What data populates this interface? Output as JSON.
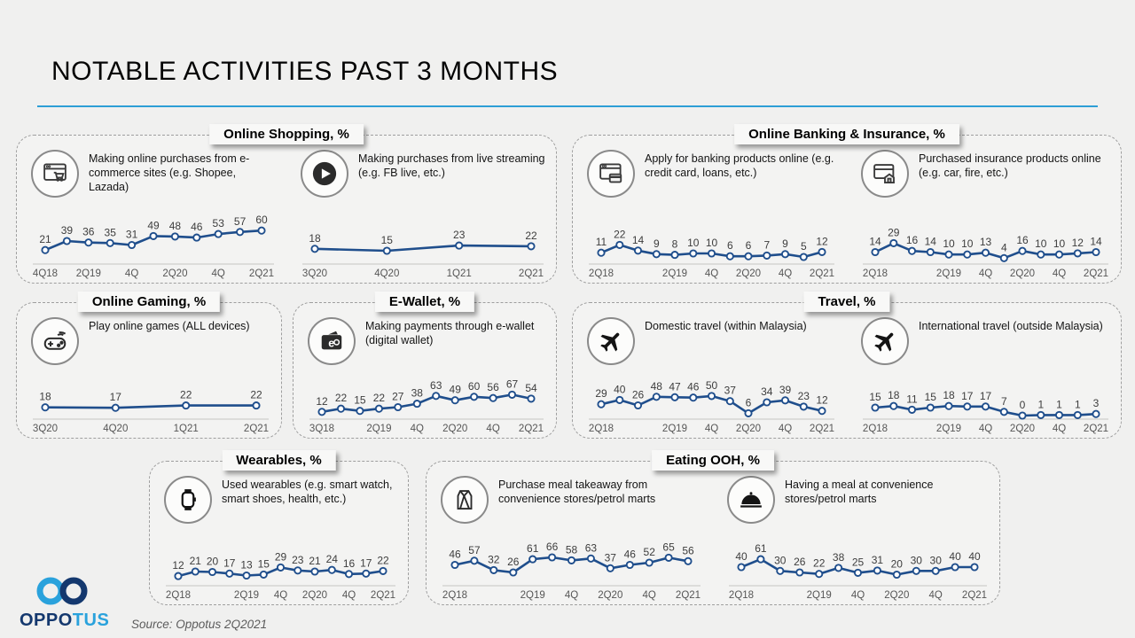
{
  "slide": {
    "title": "NOTABLE ACTIVITIES PAST 3 MONTHS",
    "source": "Source: Oppotus 2Q2021",
    "logo": {
      "brand_prefix": "OPPO",
      "brand_suffix": "TUS"
    }
  },
  "colors": {
    "line": "#1F4E8C",
    "marker_fill": "#FFFFFF",
    "value_label": "#3d3d3d",
    "axis_label": "#565656",
    "axis_line": "#c4c4c2",
    "title_underline": "#2E9FD6",
    "logo_navy": "#14386E",
    "logo_blue": "#2AA2DC"
  },
  "sections": [
    {
      "title": "Online Shopping, %"
    },
    {
      "title": "Online Banking & Insurance, %"
    },
    {
      "title": "Online Gaming, %"
    },
    {
      "title": "E-Wallet, %"
    },
    {
      "title": "Travel, %"
    },
    {
      "title": "Wearables, %"
    },
    {
      "title": "Eating OOH, %"
    }
  ],
  "chart_data": [
    {
      "id": "ecommerce",
      "type": "line",
      "caption": "Making online purchases from e-commerce sites (e.g. Shopee, Lazada)",
      "icon": "browser-cart-icon",
      "categories": [
        "4Q18",
        "1Q19",
        "2Q19",
        "3Q19",
        "4Q19",
        "1Q20",
        "2Q20",
        "3Q20",
        "4Q20",
        "1Q21",
        "2Q21"
      ],
      "values": [
        21,
        39,
        36,
        35,
        31,
        49,
        48,
        46,
        53,
        57,
        60
      ],
      "tick_indices": [
        0,
        2,
        4,
        6,
        8,
        10
      ],
      "tick_labels": [
        "4Q18",
        "2Q19",
        "4Q",
        "2Q20",
        "4Q",
        "2Q21"
      ],
      "ylim": [
        0,
        78
      ]
    },
    {
      "id": "live-streaming",
      "type": "line",
      "caption": "Making purchases from live streaming (e.g. FB live, etc.)",
      "icon": "play-circle-icon",
      "categories": [
        "3Q20",
        "4Q20",
        "1Q21",
        "2Q21"
      ],
      "values": [
        18,
        15,
        23,
        22
      ],
      "tick_indices": [
        0,
        1,
        2,
        3
      ],
      "tick_labels": [
        "3Q20",
        "4Q20",
        "1Q21",
        "2Q21"
      ],
      "ylim": [
        0,
        60
      ]
    },
    {
      "id": "banking",
      "type": "line",
      "caption": "Apply for banking products online (e.g. credit card, loans, etc.)",
      "icon": "banking-card-icon",
      "categories": [
        "2Q18",
        "3Q18",
        "4Q18",
        "1Q19",
        "2Q19",
        "3Q19",
        "4Q19",
        "1Q20",
        "2Q20",
        "3Q20",
        "4Q20",
        "1Q21",
        "2Q21"
      ],
      "values": [
        11,
        22,
        14,
        9,
        8,
        10,
        10,
        6,
        6,
        7,
        9,
        5,
        12
      ],
      "tick_indices": [
        0,
        4,
        6,
        8,
        10,
        12
      ],
      "tick_labels": [
        "2Q18",
        "2Q19",
        "4Q",
        "2Q20",
        "4Q",
        "2Q21"
      ],
      "ylim": [
        0,
        55
      ]
    },
    {
      "id": "insurance",
      "type": "line",
      "caption": "Purchased insurance products online (e.g. car, fire, etc.)",
      "icon": "insurance-home-icon",
      "categories": [
        "2Q18",
        "3Q18",
        "4Q18",
        "1Q19",
        "2Q19",
        "3Q19",
        "4Q19",
        "1Q20",
        "2Q20",
        "3Q20",
        "4Q20",
        "1Q21",
        "2Q21"
      ],
      "values": [
        14,
        29,
        16,
        14,
        10,
        10,
        13,
        4,
        16,
        10,
        10,
        12,
        14
      ],
      "tick_indices": [
        0,
        4,
        6,
        8,
        10,
        12
      ],
      "tick_labels": [
        "2Q18",
        "2Q19",
        "4Q",
        "2Q20",
        "4Q",
        "2Q21"
      ],
      "ylim": [
        0,
        65
      ]
    },
    {
      "id": "gaming",
      "type": "line",
      "caption": "Play online games (ALL devices)",
      "icon": "gamepad-icon",
      "categories": [
        "3Q20",
        "4Q20",
        "1Q21",
        "2Q21"
      ],
      "values": [
        18,
        17,
        22,
        22
      ],
      "tick_indices": [
        0,
        1,
        2,
        3
      ],
      "tick_labels": [
        "3Q20",
        "4Q20",
        "1Q21",
        "2Q21"
      ],
      "ylim": [
        0,
        58
      ]
    },
    {
      "id": "ewallet",
      "type": "line",
      "caption": "Making payments through e-wallet (digital wallet)",
      "icon": "ewallet-icon",
      "categories": [
        "3Q18",
        "4Q18",
        "1Q19",
        "2Q19",
        "3Q19",
        "4Q19",
        "1Q20",
        "2Q20",
        "3Q20",
        "4Q20",
        "1Q21",
        "2Q21"
      ],
      "values": [
        12,
        22,
        15,
        22,
        27,
        38,
        63,
        49,
        60,
        56,
        67,
        54
      ],
      "tick_indices": [
        0,
        3,
        5,
        7,
        9,
        11
      ],
      "tick_labels": [
        "3Q18",
        "2Q19",
        "4Q",
        "2Q20",
        "4Q",
        "2Q21"
      ],
      "ylim": [
        0,
        85
      ]
    },
    {
      "id": "domestic-travel",
      "type": "line",
      "caption": "Domestic travel (within Malaysia)",
      "icon": "plane-icon",
      "categories": [
        "2Q18",
        "3Q18",
        "4Q18",
        "1Q19",
        "2Q19",
        "3Q19",
        "4Q19",
        "1Q20",
        "2Q20",
        "3Q20",
        "4Q20",
        "1Q21",
        "2Q21"
      ],
      "values": [
        29,
        40,
        26,
        48,
        47,
        46,
        50,
        37,
        6,
        34,
        39,
        23,
        12
      ],
      "tick_indices": [
        0,
        4,
        6,
        8,
        10,
        12
      ],
      "tick_labels": [
        "2Q18",
        "2Q19",
        "4Q",
        "2Q20",
        "4Q",
        "2Q21"
      ],
      "ylim": [
        0,
        68
      ]
    },
    {
      "id": "international-travel",
      "type": "line",
      "caption": "International travel (outside Malaysia)",
      "icon": "plane-icon",
      "categories": [
        "2Q18",
        "3Q18",
        "4Q18",
        "1Q19",
        "2Q19",
        "3Q19",
        "4Q19",
        "1Q20",
        "2Q20",
        "3Q20",
        "4Q20",
        "1Q21",
        "2Q21"
      ],
      "values": [
        15,
        18,
        11,
        15,
        18,
        17,
        17,
        7,
        0,
        1,
        1,
        1,
        3
      ],
      "tick_indices": [
        0,
        4,
        6,
        8,
        10,
        12
      ],
      "tick_labels": [
        "2Q18",
        "2Q19",
        "4Q",
        "2Q20",
        "4Q",
        "2Q21"
      ],
      "ylim": [
        0,
        50
      ]
    },
    {
      "id": "wearables",
      "type": "line",
      "caption": "Used wearables (e.g. smart watch, smart shoes, health, etc.)",
      "icon": "smartwatch-icon",
      "categories": [
        "2Q18",
        "3Q18",
        "4Q18",
        "1Q19",
        "2Q19",
        "3Q19",
        "4Q19",
        "1Q20",
        "2Q20",
        "3Q20",
        "4Q20",
        "1Q21",
        "2Q21"
      ],
      "values": [
        12,
        21,
        20,
        17,
        13,
        15,
        29,
        23,
        21,
        24,
        16,
        17,
        22
      ],
      "tick_indices": [
        0,
        4,
        6,
        8,
        10,
        12
      ],
      "tick_labels": [
        "2Q18",
        "2Q19",
        "4Q",
        "2Q20",
        "4Q",
        "2Q21"
      ],
      "ylim": [
        0,
        68
      ]
    },
    {
      "id": "takeaway",
      "type": "line",
      "caption": "Purchase meal takeaway from convenience stores/petrol marts",
      "icon": "takeaway-bag-icon",
      "categories": [
        "2Q18",
        "3Q18",
        "4Q18",
        "1Q19",
        "2Q19",
        "3Q19",
        "4Q19",
        "1Q20",
        "2Q20",
        "3Q20",
        "4Q20",
        "1Q21",
        "2Q21"
      ],
      "values": [
        46,
        57,
        32,
        26,
        61,
        66,
        58,
        63,
        37,
        46,
        52,
        65,
        56
      ],
      "tick_indices": [
        0,
        4,
        6,
        8,
        10,
        12
      ],
      "tick_labels": [
        "2Q18",
        "2Q19",
        "4Q",
        "2Q20",
        "4Q",
        "2Q21"
      ],
      "ylim": [
        0,
        92
      ]
    },
    {
      "id": "eat-at-store",
      "type": "line",
      "caption": "Having a meal at convenience stores/petrol marts",
      "icon": "meal-cloche-icon",
      "categories": [
        "2Q18",
        "3Q18",
        "4Q18",
        "1Q19",
        "2Q19",
        "3Q19",
        "4Q19",
        "1Q20",
        "2Q20",
        "3Q20",
        "4Q20",
        "1Q21",
        "2Q21"
      ],
      "values": [
        40,
        61,
        30,
        26,
        22,
        38,
        25,
        31,
        20,
        30,
        30,
        40,
        40
      ],
      "tick_indices": [
        0,
        4,
        6,
        8,
        10,
        12
      ],
      "tick_labels": [
        "2Q18",
        "2Q19",
        "4Q",
        "2Q20",
        "4Q",
        "2Q21"
      ],
      "ylim": [
        0,
        92
      ]
    }
  ]
}
